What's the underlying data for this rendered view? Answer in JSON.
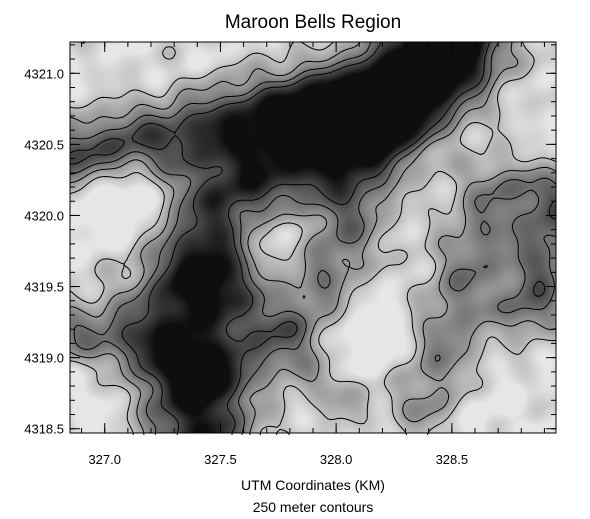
{
  "chart_data": {
    "type": "heatmap",
    "subtype": "grayscale elevation image with contour overlay",
    "title": "Maroon Bells Region",
    "xlabel": "UTM Coordinates (KM)",
    "subtitle": "250 meter contours",
    "ylabel": "",
    "xlim": [
      326.85,
      328.95
    ],
    "ylim": [
      4318.47,
      4321.22
    ],
    "x_ticks": [
      {
        "value": 327.0,
        "label": "327.0"
      },
      {
        "value": 327.5,
        "label": "327.5"
      },
      {
        "value": 328.0,
        "label": "328.0"
      },
      {
        "value": 328.5,
        "label": "328.5"
      }
    ],
    "y_ticks": [
      {
        "value": 4318.5,
        "label": "4318.5"
      },
      {
        "value": 4319.0,
        "label": "4319.0"
      },
      {
        "value": 4319.5,
        "label": "4319.5"
      },
      {
        "value": 4320.0,
        "label": "4320.0"
      },
      {
        "value": 4320.5,
        "label": "4320.5"
      },
      {
        "value": 4321.0,
        "label": "4321.0"
      }
    ],
    "x_minor_step": 0.1,
    "y_minor_step": 0.1,
    "colormap": {
      "low": "#e6e6e6",
      "high": "#0e0e0e"
    },
    "contour_color": "#000000",
    "grid": false,
    "legend": "none"
  }
}
